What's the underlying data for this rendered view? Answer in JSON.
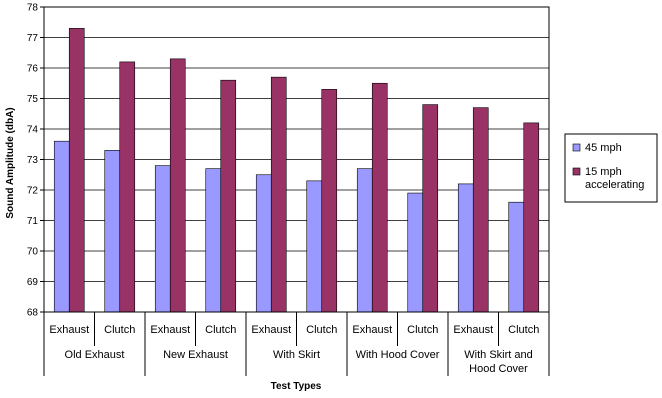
{
  "chart_data": {
    "type": "bar",
    "categories": [
      "Exhaust",
      "Clutch",
      "Exhaust",
      "Clutch",
      "Exhaust",
      "Clutch",
      "Exhaust",
      "Clutch",
      "Exhaust",
      "Clutch"
    ],
    "groups": [
      {
        "label": "Old Exhaust",
        "span": 2
      },
      {
        "label": "New Exhaust",
        "span": 2
      },
      {
        "label": "With Skirt",
        "span": 2
      },
      {
        "label": "With Hood Cover",
        "span": 2
      },
      {
        "label": "With Skirt and Hood Cover",
        "lines": [
          "With Skirt and",
          "Hood Cover"
        ],
        "span": 2
      }
    ],
    "series": [
      {
        "name": "45 mph",
        "color": "#9999ff",
        "values": [
          73.6,
          73.3,
          72.8,
          72.7,
          72.5,
          72.3,
          72.7,
          71.9,
          72.2,
          71.6
        ]
      },
      {
        "name": "15 mph accelerating",
        "name_lines": [
          "15 mph",
          "accelerating"
        ],
        "color": "#993366",
        "values": [
          77.3,
          76.2,
          76.3,
          75.6,
          75.7,
          75.3,
          75.5,
          74.8,
          74.7,
          74.2
        ]
      }
    ],
    "xlabel": "Test Types",
    "ylabel": "Sound Amplitude (dbA)",
    "ylim": [
      68,
      78
    ],
    "yticks": [
      68,
      69,
      70,
      71,
      72,
      73,
      74,
      75,
      76,
      77,
      78
    ],
    "grid": true,
    "legend_position": "right"
  }
}
